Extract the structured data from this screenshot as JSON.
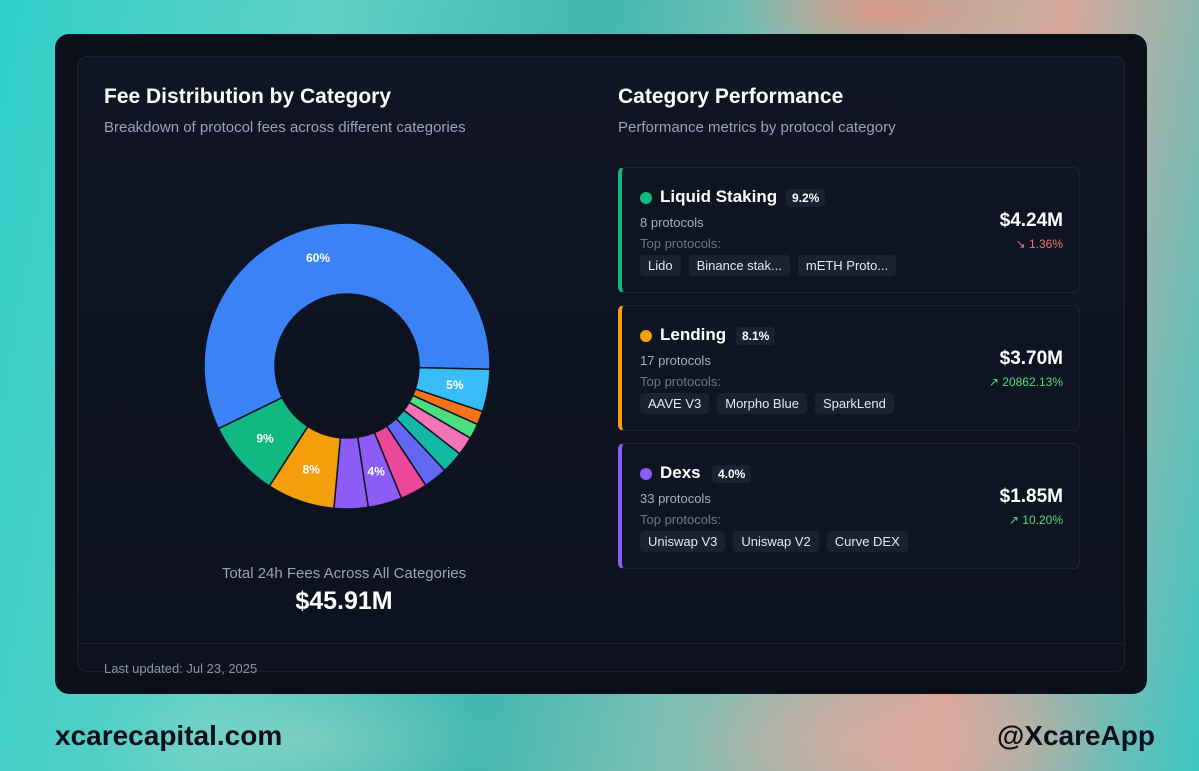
{
  "left_panel": {
    "title": "Fee Distribution by Category",
    "subtitle": "Breakdown of protocol fees across different categories",
    "total_label": "Total 24h Fees Across All Categories",
    "total_value": "$45.91M"
  },
  "right_panel": {
    "title": "Category Performance",
    "subtitle": "Performance metrics by protocol category",
    "top_protocols_label": "Top protocols:",
    "categories": [
      {
        "name": "Liquid Staking",
        "percent": "9.2%",
        "protocols": "8 protocols",
        "top": [
          "Lido",
          "Binance stak...",
          "mETH Proto..."
        ],
        "amount": "$4.24M",
        "change": "1.36%",
        "change_direction": "down",
        "color": "#10b981"
      },
      {
        "name": "Lending",
        "percent": "8.1%",
        "protocols": "17 protocols",
        "top": [
          "AAVE V3",
          "Morpho Blue",
          "SparkLend"
        ],
        "amount": "$3.70M",
        "change": "20862.13%",
        "change_direction": "up",
        "color": "#f59e0b"
      },
      {
        "name": "Dexs",
        "percent": "4.0%",
        "protocols": "33 protocols",
        "top": [
          "Uniswap V3",
          "Uniswap V2",
          "Curve DEX"
        ],
        "amount": "$1.85M",
        "change": "10.20%",
        "change_direction": "up",
        "color": "#8b5cf6"
      }
    ]
  },
  "footer": {
    "updated": "Last updated: Jul 23, 2025",
    "site": "xcarecapital.com",
    "handle": "@XcareApp"
  },
  "colors": {
    "up": "#4ade80",
    "down": "#f87171"
  },
  "chart_data": {
    "type": "pie",
    "values": [
      60,
      5,
      1.6,
      1.8,
      2.2,
      2.6,
      2.8,
      3.2,
      4,
      4,
      8,
      9
    ],
    "colors": [
      "#3b82f6",
      "#38bdf8",
      "#f97316",
      "#4ade80",
      "#f472b6",
      "#14b8a6",
      "#6366f1",
      "#ec4899",
      "#8b5cf6",
      "#8b5cf6",
      "#f59e0b",
      "#10b981"
    ],
    "labels": [
      "60%",
      "5%",
      "",
      "",
      "",
      "",
      "",
      "",
      "4%",
      "",
      "8%",
      "9%"
    ]
  }
}
